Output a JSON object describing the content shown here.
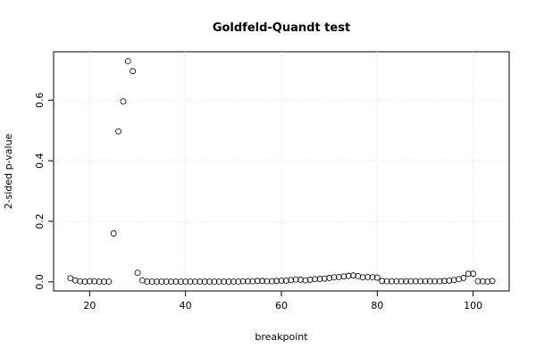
{
  "chart_data": {
    "type": "scatter",
    "title": "Goldfeld-Quandt test",
    "x_label": "breakpoint",
    "y_label": "2-sided p-value",
    "x": [
      16,
      17,
      18,
      19,
      20,
      21,
      22,
      23,
      24,
      25,
      26,
      27,
      28,
      29,
      30,
      31,
      32,
      33,
      34,
      35,
      36,
      37,
      38,
      39,
      40,
      41,
      42,
      43,
      44,
      45,
      46,
      47,
      48,
      49,
      50,
      51,
      52,
      53,
      54,
      55,
      56,
      57,
      58,
      59,
      60,
      61,
      62,
      63,
      64,
      65,
      66,
      67,
      68,
      69,
      70,
      71,
      72,
      73,
      74,
      75,
      76,
      77,
      78,
      79,
      80,
      81,
      82,
      83,
      84,
      85,
      86,
      87,
      88,
      89,
      90,
      91,
      92,
      93,
      94,
      95,
      96,
      97,
      98,
      99,
      100,
      101,
      102,
      103,
      104
    ],
    "values": [
      0.012,
      0.005,
      0.002,
      0.001,
      0.002,
      0.002,
      0.001,
      0.001,
      0.001,
      0.16,
      0.497,
      0.596,
      0.729,
      0.696,
      0.03,
      0.005,
      0.001,
      0.001,
      0.001,
      0.001,
      0.001,
      0.001,
      0.001,
      0.001,
      0.001,
      0.001,
      0.001,
      0.001,
      0.001,
      0.001,
      0.001,
      0.001,
      0.001,
      0.001,
      0.001,
      0.001,
      0.002,
      0.002,
      0.002,
      0.003,
      0.003,
      0.002,
      0.002,
      0.003,
      0.004,
      0.004,
      0.006,
      0.008,
      0.007,
      0.005,
      0.007,
      0.009,
      0.01,
      0.011,
      0.013,
      0.015,
      0.016,
      0.018,
      0.02,
      0.021,
      0.019,
      0.015,
      0.016,
      0.015,
      0.014,
      0.003,
      0.002,
      0.002,
      0.002,
      0.002,
      0.002,
      0.002,
      0.002,
      0.002,
      0.002,
      0.002,
      0.002,
      0.002,
      0.003,
      0.004,
      0.006,
      0.009,
      0.013,
      0.027,
      0.027,
      0.002,
      0.002,
      0.001,
      0.003
    ],
    "color": "#000000",
    "xlim": [
      12.48,
      107.52
    ],
    "xticks": [
      20,
      40,
      60,
      80,
      100
    ],
    "ylim": [
      -0.03,
      0.76
    ],
    "yticks": [
      {
        "value": 0,
        "label": "0.0"
      },
      {
        "value": 0.2,
        "label": "0.2"
      },
      {
        "value": 0.4,
        "label": "0.4"
      },
      {
        "value": 0.6,
        "label": "0.6"
      }
    ],
    "grid": true
  }
}
